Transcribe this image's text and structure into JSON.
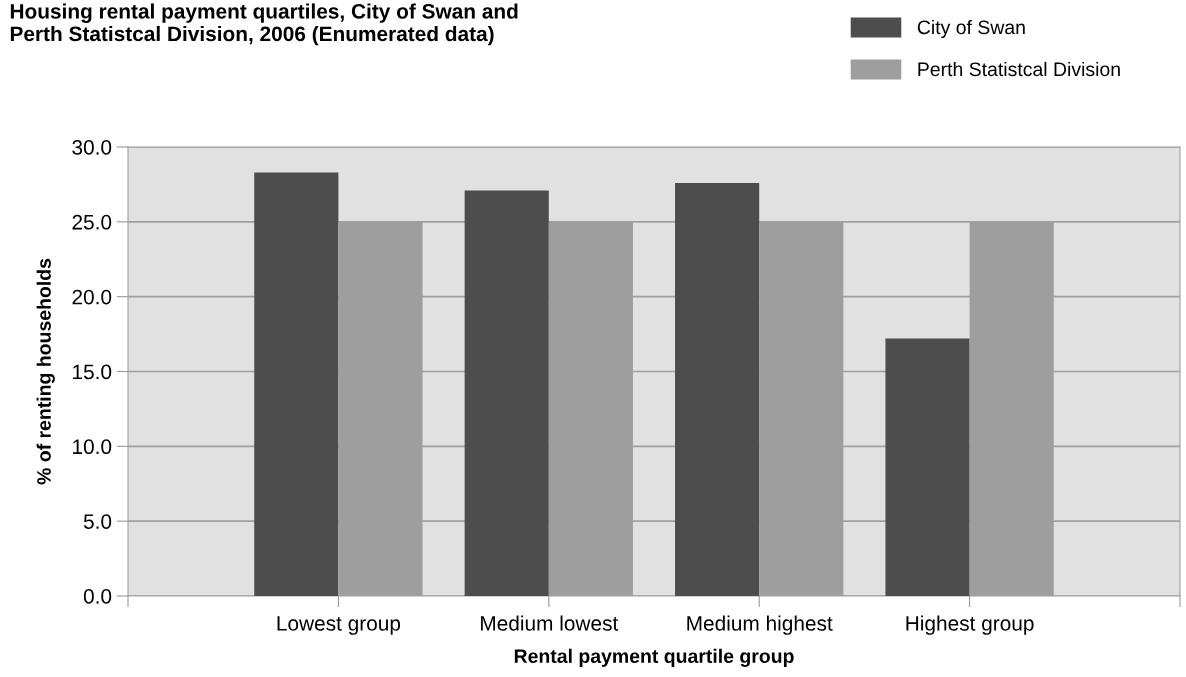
{
  "chart_data": {
    "type": "bar",
    "title": "Housing rental payment quartiles, City of Swan and\nPerth Statistcal Division, 2006 (Enumerated data)",
    "xlabel": "Rental payment quartile group",
    "ylabel": "% of renting households",
    "categories": [
      null,
      "Lowest group",
      "Medium lowest",
      "Medium highest",
      "Highest group",
      null
    ],
    "series": [
      {
        "name": "City of Swan",
        "color": "#4d4d4d",
        "values": [
          null,
          28.3,
          27.1,
          27.6,
          17.2,
          null
        ]
      },
      {
        "name": "Perth Statistcal Division",
        "color": "#9e9e9e",
        "values": [
          null,
          25.0,
          25.0,
          25.0,
          25.0,
          null
        ]
      }
    ],
    "ylim": [
      0,
      30
    ],
    "yticks": [
      {
        "value": 0,
        "label": "0.0"
      },
      {
        "value": 5,
        "label": "5.0"
      },
      {
        "value": 10,
        "label": "10.0"
      },
      {
        "value": 15,
        "label": "15.0"
      },
      {
        "value": 20,
        "label": "20.0"
      },
      {
        "value": 25,
        "label": "25.0"
      },
      {
        "value": 30,
        "label": "30.0"
      }
    ],
    "grid": "y",
    "legend": "top right"
  }
}
